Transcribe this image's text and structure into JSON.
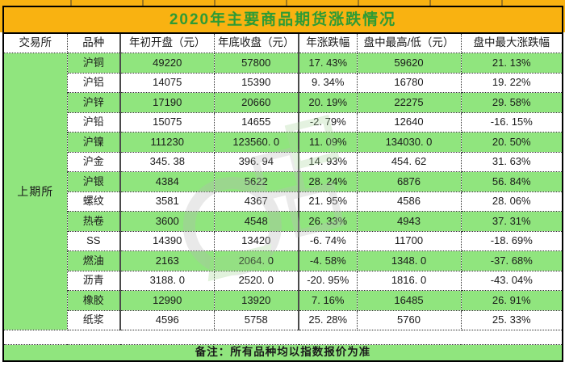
{
  "title": "2020年主要商品期货涨跌情况",
  "note": "备注：所有品种均以指数报价为准",
  "exchange": "上期所",
  "columns": [
    "交易所",
    "品种",
    "年初开盘（元）",
    "年底收盘（元）",
    "年涨跌幅",
    "盘中最高/低（元）",
    "盘中最大涨跌幅"
  ],
  "rows": [
    {
      "variety": "沪铜",
      "open": "49220",
      "close": "57800",
      "year_change": "17. 43%",
      "intraday_high_low": "59620",
      "max_intraday_change": "21. 13%"
    },
    {
      "variety": "沪铝",
      "open": "14075",
      "close": "15390",
      "year_change": "9. 34%",
      "intraday_high_low": "16780",
      "max_intraday_change": "19. 22%"
    },
    {
      "variety": "沪锌",
      "open": "17190",
      "close": "20660",
      "year_change": "20. 19%",
      "intraday_high_low": "22275",
      "max_intraday_change": "29. 58%"
    },
    {
      "variety": "沪铅",
      "open": "15075",
      "close": "14655",
      "year_change": "-2. 79%",
      "intraday_high_low": "12640",
      "max_intraday_change": "-16. 15%"
    },
    {
      "variety": "沪镍",
      "open": "111230",
      "close": "123560. 0",
      "year_change": "11. 09%",
      "intraday_high_low": "134030. 0",
      "max_intraday_change": "20. 50%"
    },
    {
      "variety": "沪金",
      "open": "345. 38",
      "close": "396. 94",
      "year_change": "14. 93%",
      "intraday_high_low": "454. 62",
      "max_intraday_change": "31. 63%"
    },
    {
      "variety": "沪银",
      "open": "4384",
      "close": "5622",
      "year_change": "28. 24%",
      "intraday_high_low": "6876",
      "max_intraday_change": "56. 84%"
    },
    {
      "variety": "螺纹",
      "open": "3581",
      "close": "4367",
      "year_change": "21. 95%",
      "intraday_high_low": "4586",
      "max_intraday_change": "28. 06%"
    },
    {
      "variety": "热卷",
      "open": "3600",
      "close": "4548",
      "year_change": "26. 33%",
      "intraday_high_low": "4943",
      "max_intraday_change": "37. 31%"
    },
    {
      "variety": "SS",
      "open": "14390",
      "close": "13420",
      "year_change": "-6. 74%",
      "intraday_high_low": "11700",
      "max_intraday_change": "-18. 69%"
    },
    {
      "variety": "燃油",
      "open": "2163",
      "close": "2064. 0",
      "year_change": "-4. 58%",
      "intraday_high_low": "1348. 0",
      "max_intraday_change": "-37. 68%"
    },
    {
      "variety": "沥青",
      "open": "3188. 0",
      "close": "2520. 0",
      "year_change": "-20. 95%",
      "intraday_high_low": "1816. 0",
      "max_intraday_change": "-43. 04%"
    },
    {
      "variety": "橡胶",
      "open": "12990",
      "close": "13920",
      "year_change": "7. 16%",
      "intraday_high_low": "16485",
      "max_intraday_change": "26. 91%"
    },
    {
      "variety": "纸浆",
      "open": "4596",
      "close": "5758",
      "year_change": "25. 28%",
      "intraday_high_low": "5760",
      "max_intraday_change": "25. 33%"
    }
  ],
  "colors": {
    "banner_bg": "#F9B211",
    "title_text": "#2E9B35",
    "row_green": "#90E57E",
    "row_white": "#FFFFFF",
    "text": "#1A1A1A"
  }
}
